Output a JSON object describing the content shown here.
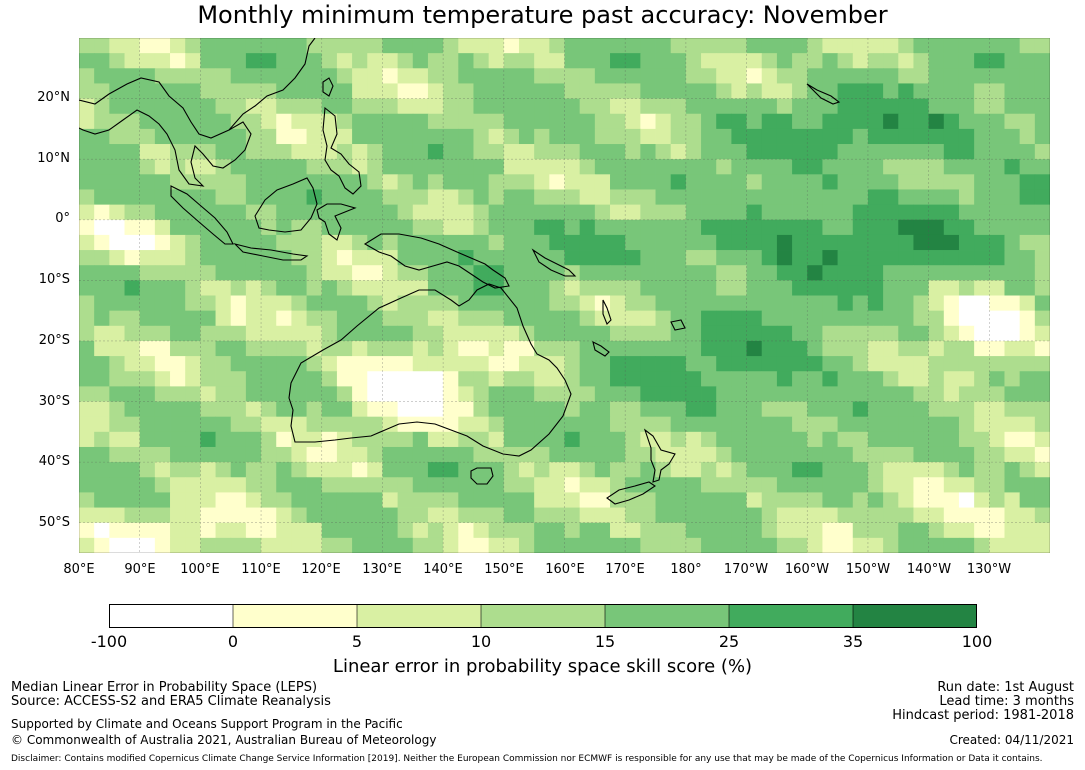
{
  "title": "Monthly minimum temperature past accuracy: November",
  "map": {
    "lat_labels": [
      "20°N",
      "10°N",
      "0°",
      "10°S",
      "20°S",
      "30°S",
      "40°S",
      "50°S"
    ],
    "lon_labels": [
      "80°E",
      "90°E",
      "100°E",
      "110°E",
      "120°E",
      "130°E",
      "140°E",
      "150°E",
      "160°E",
      "170°E",
      "180°",
      "170°W",
      "160°W",
      "150°W",
      "140°W",
      "130°W"
    ],
    "lon_range_deg": [
      80,
      240
    ],
    "lat_range_deg": [
      -55,
      30
    ]
  },
  "legend": {
    "label": "Linear error in probability space skill score (%)",
    "ticks": [
      "-100",
      "0",
      "5",
      "10",
      "15",
      "25",
      "35",
      "100"
    ],
    "bins": [
      {
        "from": "-100",
        "to": "0",
        "color": "#ffffff"
      },
      {
        "from": "0",
        "to": "5",
        "color": "#ffffcc"
      },
      {
        "from": "5",
        "to": "10",
        "color": "#d9f0a3"
      },
      {
        "from": "10",
        "to": "15",
        "color": "#addd8e"
      },
      {
        "from": "15",
        "to": "25",
        "color": "#78c679"
      },
      {
        "from": "25",
        "to": "35",
        "color": "#41ab5d"
      },
      {
        "from": "35",
        "to": "100",
        "color": "#238443"
      }
    ]
  },
  "footer": {
    "metric": "Median Linear Error in Probability Space (LEPS)",
    "source": "Source: ACCESS-S2 and ERA5 Climate Reanalysis",
    "support": "Supported by Climate and Oceans Support Program in the Pacific",
    "copyright": "© Commonwealth of Australia 2021, Australian Bureau of Meteorology",
    "run_date": "Run date: 1st August",
    "lead_time": "Lead time: 3 months",
    "hindcast": "Hindcast period: 1981-2018",
    "created": "Created: 04/11/2021",
    "disclaimer": "Disclaimer: Contains modified Copernicus Climate Change Service Information [2019]. Neither the European Commission nor ECMWF is responsible for any use that may be made of the Copernicus Information or Data it contains."
  }
}
